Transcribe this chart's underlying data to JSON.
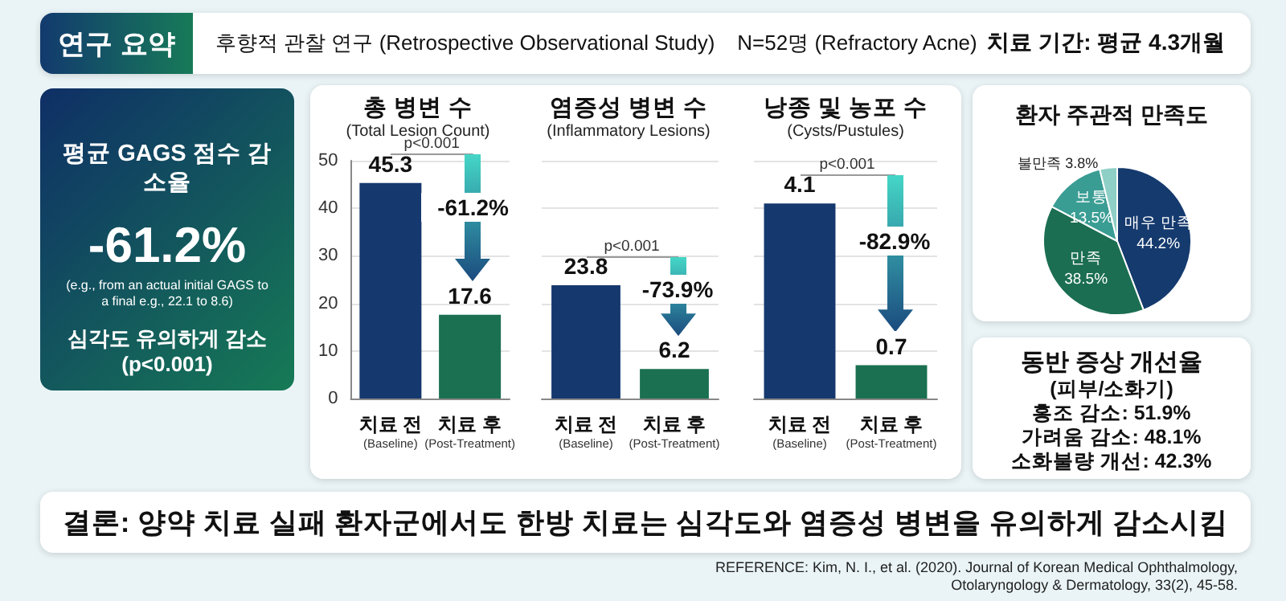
{
  "chart_data": [
    {
      "type": "other",
      "title": "연구 요약",
      "annotations": [
        "후향적 관찰 연구 (Retrospective Observational Study)",
        "N=52명 (Refractory Acne)",
        "치료 기간: 평균 4.3개월"
      ]
    },
    {
      "type": "other",
      "title": "평균 GAGS 점수 감소율",
      "annotations": [
        "-61.2%",
        "(e.g., from an actual initial GAGS to a final e.g., 22.1 to 8.6)",
        "심각도 유의하게 감소",
        "(p<0.001)"
      ]
    },
    {
      "type": "bar",
      "title": "총 병변 수",
      "subtitle": "(Total Lesion Count)",
      "categories": [
        "치료 전\n(Baseline)",
        "치료 후\n(Post-Treatment)"
      ],
      "values": [
        45.3,
        17.6
      ],
      "colors": [
        "#15386e",
        "#1a7050"
      ],
      "ylim": [
        0,
        50
      ],
      "yticks": [
        0,
        10,
        20,
        30,
        40,
        50
      ],
      "grid": "y",
      "data_labels": true,
      "annotations": [
        "p<0.001",
        "-61.2%"
      ]
    },
    {
      "type": "bar",
      "title": "염증성 병변 수",
      "subtitle": "(Inflammatory Lesions)",
      "categories": [
        "치료 전\n(Baseline)",
        "치료 후\n(Post-Treatment)"
      ],
      "values": [
        23.8,
        6.2
      ],
      "colors": [
        "#15386e",
        "#1a7050"
      ],
      "ylim": [
        0,
        50
      ],
      "yticks": [
        0,
        10,
        20,
        30,
        40,
        50
      ],
      "grid": "y",
      "tick_labels": "x",
      "data_labels": true,
      "annotations": [
        "p<0.001",
        "-73.9%"
      ]
    },
    {
      "type": "bar",
      "title": "낭종 및 농포 수",
      "subtitle": "(Cysts/Pustules)",
      "categories": [
        "치료 전\n(Baseline)",
        "치료 후\n(Post-Treatment)"
      ],
      "values": [
        4.1,
        0.7
      ],
      "colors": [
        "#15386e",
        "#1a7050"
      ],
      "ylim": [
        0,
        5
      ],
      "yticks": [
        0,
        1,
        2,
        3,
        4,
        5
      ],
      "grid": "y",
      "tick_labels": "x",
      "data_labels": true,
      "annotations": [
        "p<0.001",
        "-82.9%"
      ]
    },
    {
      "type": "pie",
      "title": "환자 주관적 만족도",
      "categories": [
        "매우 만족",
        "만족",
        "보통",
        "불만족"
      ],
      "values": [
        44.2,
        38.5,
        13.5,
        3.8
      ],
      "value_labels": [
        "44.2%",
        "38.5%",
        "13.5%",
        "3.8%"
      ],
      "colors": [
        "#153a6e",
        "#1b6e52",
        "#3a9d94",
        "#8ecfc6"
      ]
    },
    {
      "type": "other",
      "title": "동반 증상 개선율",
      "annotations": [
        "(피부/소화기)",
        "홍조 감소: 51.9%",
        "가려움 감소: 48.1%",
        "소화불량 개선: 42.3%"
      ]
    },
    {
      "type": "other",
      "title": "결론: 양약 치료 실패 환자군에서도 한방 치료는 심각도와 염증성 병변을 유의하게 감소시킴",
      "annotations": [
        "REFERENCE: Kim, N. I., et al. (2020). Journal of Korean Medical Ophthalmology, Otolaryngology & Dermatology, 33(2), 45-58."
      ]
    }
  ]
}
